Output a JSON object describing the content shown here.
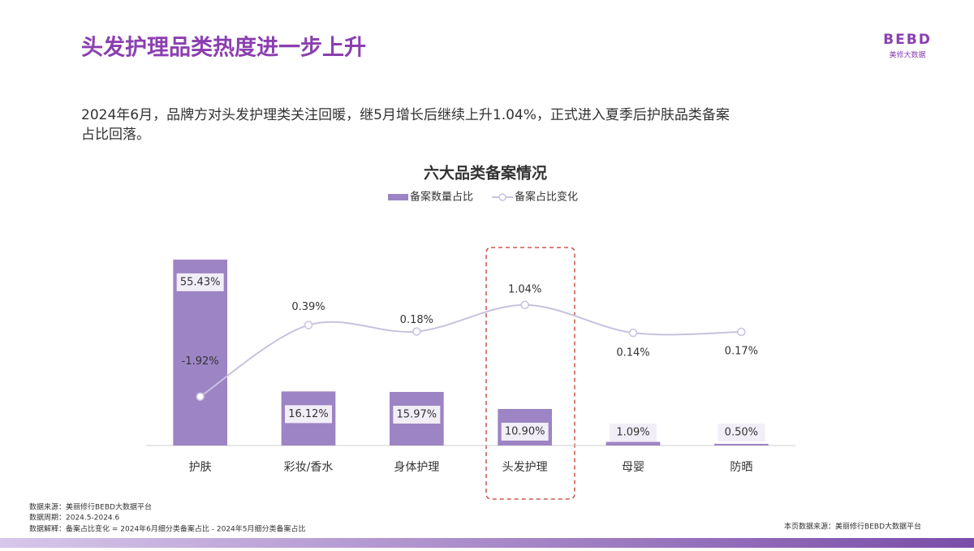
{
  "page": {
    "title": "头发护理品类热度进一步上升",
    "logo": "BEBD",
    "logo_sub": "美修大数据",
    "subtitle_lines": [
      "2024年6月，品牌方对头发护理类关注回暖，继5月增长后继续上升1.04%，正式进入夏季后护肤品类备案",
      "占比回落。"
    ],
    "notes": [
      "数据来源：美丽修行BEBD大数据平台",
      "数据周期：2024.5-2024.6",
      "数据解释：备案占比变化 = 2024年6月细分类备案占比 - 2024年5月细分类备案占比"
    ],
    "source_right": "本页数据来源：美丽修行BEBD大数据平台"
  },
  "chart_data": {
    "type": "bar",
    "title": "六大品类备案情况",
    "categories": [
      "护肤",
      "彩妆/香水",
      "身体护理",
      "头发护理",
      "母婴",
      "防晒"
    ],
    "series": [
      {
        "name": "备案数量占比",
        "type": "bar",
        "color": "#9d84c4",
        "values": [
          55.43,
          16.12,
          15.97,
          10.9,
          1.09,
          0.5
        ],
        "value_labels": [
          "55.43%",
          "16.12%",
          "15.97%",
          "10.90%",
          "1.09%",
          "0.50%"
        ]
      },
      {
        "name": "备案占比变化",
        "type": "line",
        "axis": "y2",
        "color": "#c9c1de",
        "values": [
          -1.92,
          0.39,
          0.18,
          1.04,
          0.14,
          0.17
        ],
        "value_labels": [
          "-1.92%",
          "0.39%",
          "0.18%",
          "1.04%",
          "0.14%",
          "0.17%"
        ]
      }
    ],
    "ylim": [
      0,
      60
    ],
    "y2lim": [
      -3.5,
      3
    ],
    "grid": false,
    "legend": "top"
  }
}
